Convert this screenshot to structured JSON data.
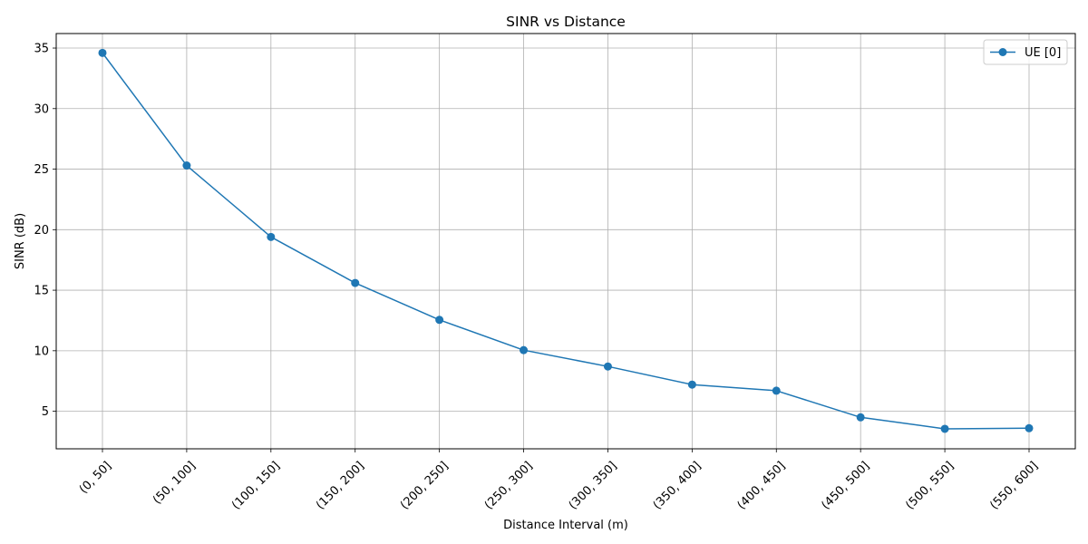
{
  "chart_data": {
    "type": "line",
    "title": "SINR vs Distance",
    "xlabel": "Distance Interval (m)",
    "ylabel": "SINR (dB)",
    "categories": [
      "(0, 50]",
      "(50, 100]",
      "(100, 150]",
      "(150, 200]",
      "(200, 250]",
      "(250, 300]",
      "(300, 350]",
      "(350, 400]",
      "(400, 450]",
      "(450, 500]",
      "(500, 550]",
      "(550, 600]"
    ],
    "series": [
      {
        "name": "UE [0]",
        "values": [
          34.6,
          25.3,
          19.4,
          15.6,
          12.55,
          10.05,
          8.7,
          7.2,
          6.7,
          4.5,
          3.55,
          3.6
        ],
        "color": "#1f77b4",
        "marker": "circle"
      }
    ],
    "ylim": [
      1.9,
      36.2
    ],
    "yticks": [
      5,
      10,
      15,
      20,
      25,
      30,
      35
    ],
    "grid": true,
    "legend_position": "top-right",
    "xtick_rotation": 45
  },
  "colors": {
    "grid": "#b0b0b0",
    "axis": "#000000",
    "background": "#ffffff"
  }
}
